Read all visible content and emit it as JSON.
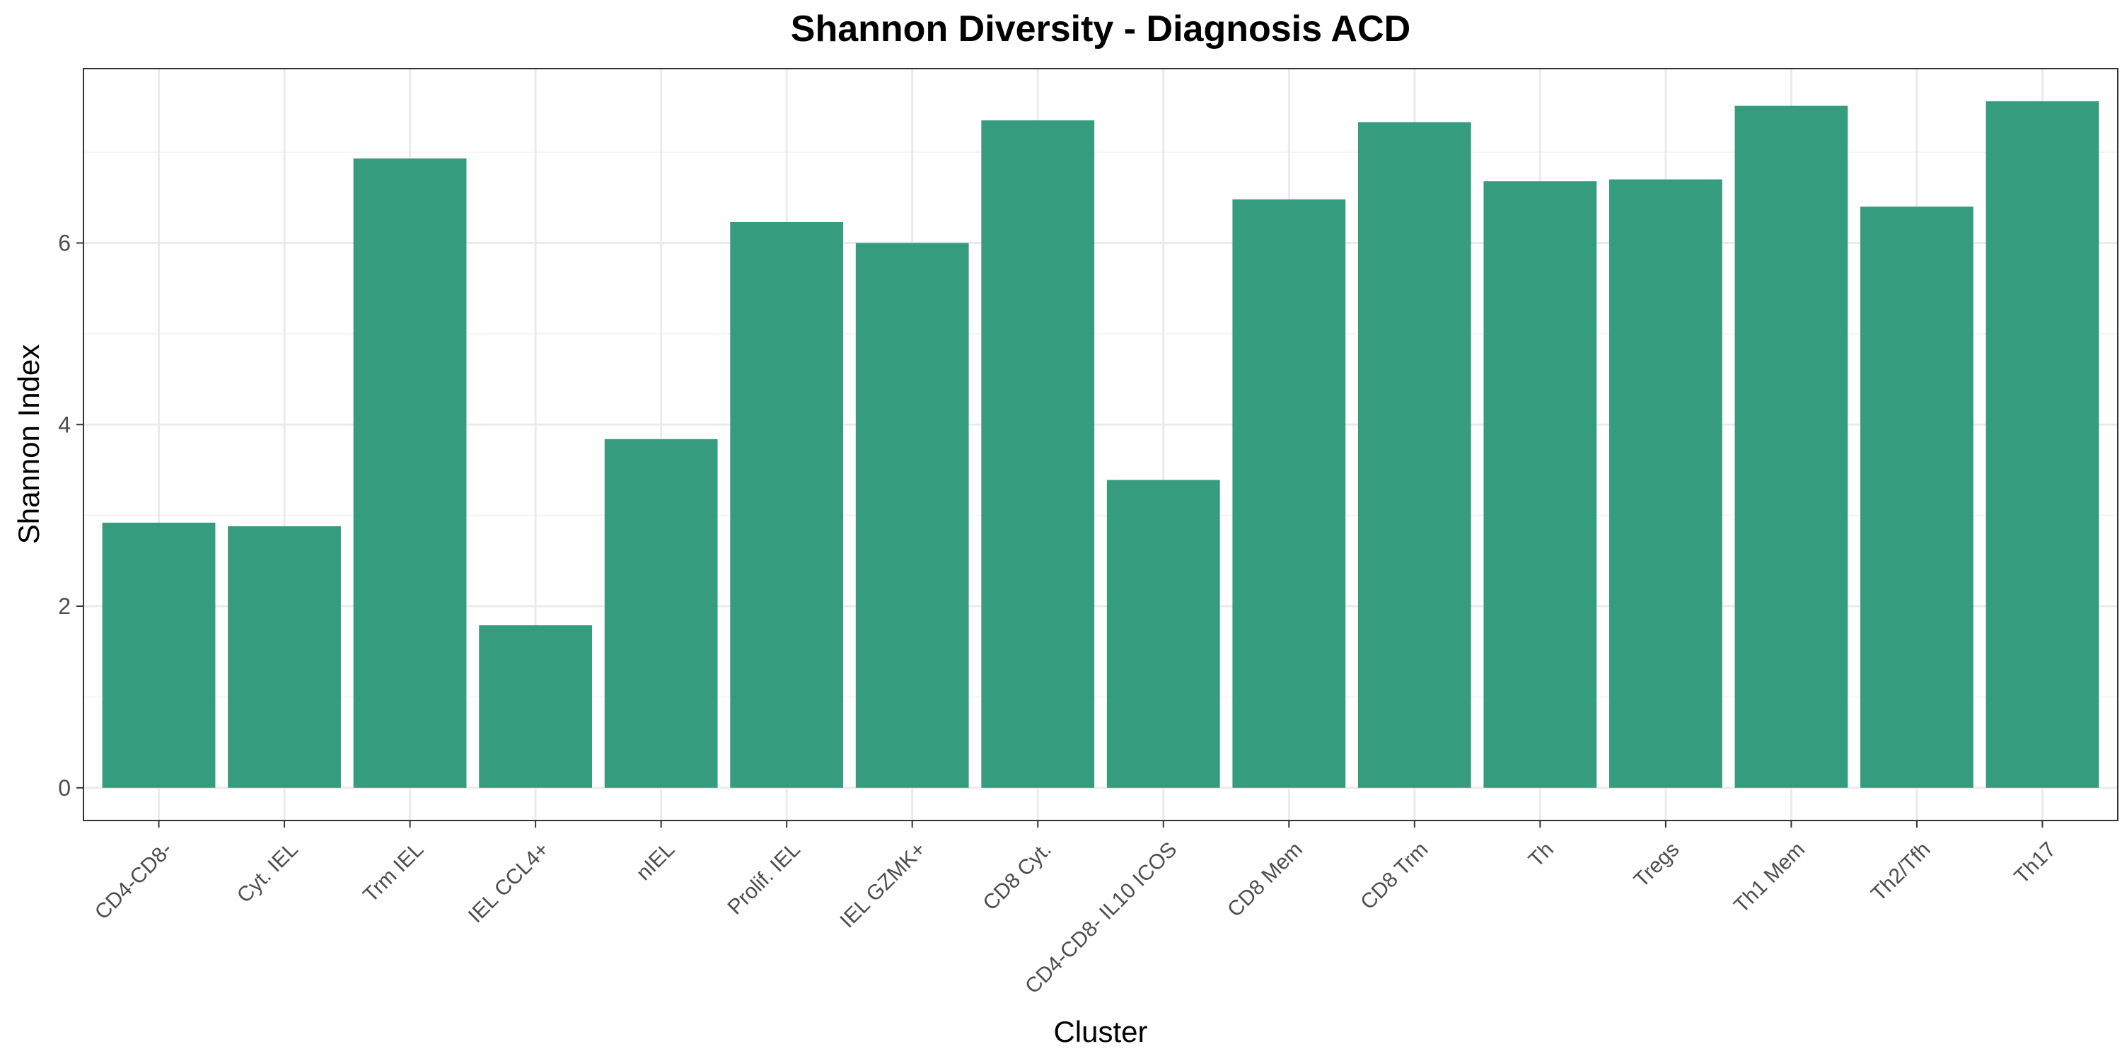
{
  "chart_data": {
    "type": "bar",
    "title": "Shannon Diversity - Diagnosis ACD",
    "xlabel": "Cluster",
    "ylabel": "Shannon Index",
    "categories": [
      "CD4-CD8-",
      "Cyt. IEL",
      "Trm IEL",
      "IEL CCL4+",
      "nIEL",
      "Prolif. IEL",
      "IEL GZMK+",
      "CD8 Cyt.",
      "CD4-CD8- IL10 ICOS",
      "CD8 Mem",
      "CD8 Trm",
      "Th",
      "Tregs",
      "Th1 Mem",
      "Th2/Tfh",
      "Th17"
    ],
    "values": [
      2.92,
      2.88,
      6.93,
      1.79,
      3.84,
      6.23,
      6.0,
      7.35,
      3.39,
      6.48,
      7.33,
      6.68,
      6.7,
      7.51,
      6.4,
      7.56
    ],
    "ylim": [
      -0.36,
      7.92
    ],
    "yticks": [
      0,
      2,
      4,
      6
    ],
    "grid": true,
    "bar_color": "#359c7e"
  }
}
